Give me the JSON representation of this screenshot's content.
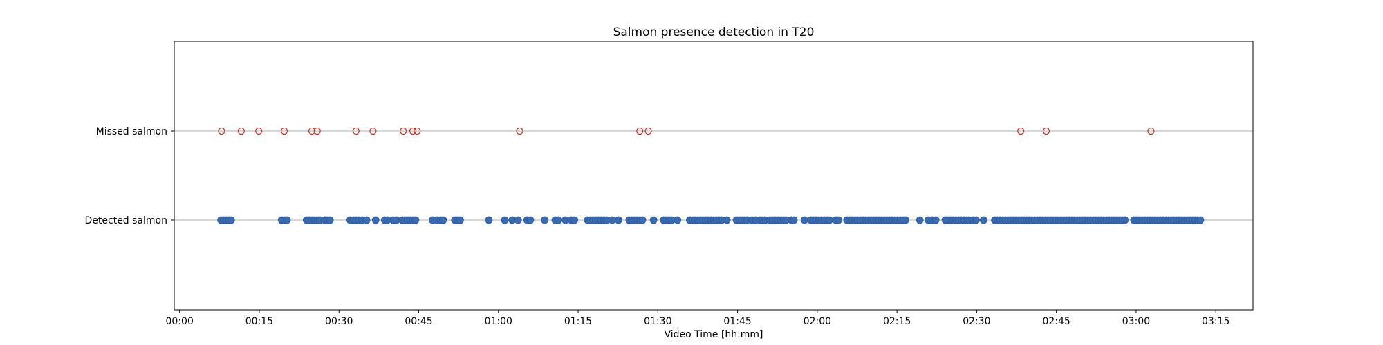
{
  "chart_data": {
    "type": "scatter",
    "title": "Salmon presence detection in T20",
    "xlabel": "Video Time [hh:mm]",
    "xlim_minutes": [
      -1,
      202
    ],
    "x_ticks": [
      {
        "minutes": 0,
        "label": "00:00"
      },
      {
        "minutes": 15,
        "label": "00:15"
      },
      {
        "minutes": 30,
        "label": "00:30"
      },
      {
        "minutes": 45,
        "label": "00:45"
      },
      {
        "minutes": 60,
        "label": "01:00"
      },
      {
        "minutes": 75,
        "label": "01:15"
      },
      {
        "minutes": 90,
        "label": "01:30"
      },
      {
        "minutes": 105,
        "label": "01:45"
      },
      {
        "minutes": 120,
        "label": "02:00"
      },
      {
        "minutes": 135,
        "label": "02:15"
      },
      {
        "minutes": 150,
        "label": "02:30"
      },
      {
        "minutes": 165,
        "label": "02:45"
      },
      {
        "minutes": 180,
        "label": "03:00"
      },
      {
        "minutes": 195,
        "label": "03:15"
      }
    ],
    "categories": [
      "Detected salmon",
      "Missed salmon"
    ],
    "grid": "horizontal lines at each category",
    "series": [
      {
        "category": "Missed salmon",
        "marker": "hollow-circle",
        "color": "#c0392b",
        "x_minutes": [
          7.9,
          11.6,
          14.9,
          19.7,
          24.9,
          25.9,
          33.2,
          36.4,
          42.1,
          43.9,
          44.7,
          64.0,
          86.6,
          88.2,
          158.3,
          163.1,
          182.8
        ]
      },
      {
        "category": "Detected salmon",
        "marker": "filled-circle",
        "color": "#3a6ab0",
        "x_minutes": [
          7.8,
          8.3,
          8.8,
          9.3,
          9.7,
          19.2,
          19.7,
          20.2,
          23.9,
          24.4,
          24.9,
          25.4,
          25.9,
          26.4,
          27.3,
          27.8,
          28.3,
          32.1,
          32.7,
          33.2,
          33.7,
          34.3,
          35.2,
          36.9,
          38.6,
          39.1,
          40.2,
          40.8,
          41.9,
          42.4,
          42.9,
          43.4,
          43.9,
          44.4,
          47.6,
          48.4,
          49.1,
          49.6,
          51.8,
          52.3,
          52.8,
          58.2,
          61.2,
          62.6,
          63.7,
          65.4,
          66.0,
          68.7,
          70.7,
          71.3,
          72.6,
          73.7,
          74.3,
          76.8,
          77.3,
          77.8,
          78.3,
          78.8,
          79.3,
          79.8,
          80.3,
          81.4,
          82.6,
          84.6,
          85.1,
          85.6,
          86.1,
          86.6,
          87.1,
          89.2,
          91.1,
          91.6,
          92.1,
          92.6,
          93.7,
          96.0,
          96.5,
          97.0,
          97.5,
          98.0,
          98.5,
          99.0,
          99.5,
          100.0,
          100.5,
          101.0,
          101.5,
          102.0,
          103.0,
          104.8,
          105.3,
          105.8,
          106.3,
          106.8,
          107.7,
          108.4,
          109.2,
          109.7,
          110.2,
          111.1,
          111.6,
          112.1,
          112.6,
          113.1,
          113.6,
          114.1,
          115.1,
          115.6,
          117.6,
          118.8,
          119.3,
          119.8,
          120.3,
          120.8,
          121.3,
          121.8,
          122.3,
          123.5,
          124.0,
          125.6,
          126.1,
          126.6,
          127.1,
          127.6,
          128.1,
          128.6,
          129.1,
          129.6,
          130.1,
          130.6,
          131.1,
          131.6,
          132.1,
          132.6,
          133.1,
          133.6,
          134.1,
          134.6,
          135.1,
          135.6,
          136.1,
          136.6,
          139.3,
          140.9,
          141.6,
          142.3,
          144.1,
          144.6,
          145.1,
          145.6,
          146.1,
          146.6,
          147.1,
          147.6,
          148.1,
          148.6,
          149.3,
          149.9,
          151.3,
          153.4,
          153.9,
          154.4,
          154.9,
          155.4,
          155.9,
          156.4,
          156.9,
          157.4,
          157.9,
          158.4,
          158.9,
          159.4,
          159.9,
          160.4,
          160.9,
          161.4,
          161.9,
          162.4,
          162.9,
          163.4,
          163.9,
          164.4,
          164.9,
          165.4,
          165.9,
          166.4,
          166.9,
          167.4,
          167.9,
          168.4,
          168.9,
          169.4,
          169.9,
          170.4,
          170.9,
          171.4,
          171.9,
          172.4,
          172.9,
          173.4,
          173.9,
          174.4,
          174.9,
          175.4,
          175.9,
          176.4,
          176.9,
          177.4,
          177.9,
          179.6,
          180.1,
          180.6,
          181.1,
          181.6,
          182.1,
          182.6,
          183.1,
          183.6,
          184.1,
          184.6,
          185.1,
          185.6,
          186.1,
          186.6,
          187.1,
          187.6,
          188.1,
          188.6,
          189.1,
          189.6,
          190.1,
          190.6,
          191.1,
          191.6,
          192.1
        ]
      }
    ]
  }
}
